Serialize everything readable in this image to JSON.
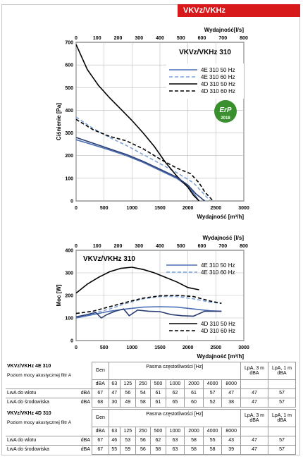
{
  "header_tag": "VKVz/VKHz",
  "chart_data": [
    {
      "type": "line",
      "title": "VKVz/VKHz 310",
      "top_axis_label": "Wydajność[l/s]",
      "top_ticks": [
        "0",
        "100",
        "200",
        "300",
        "400",
        "500",
        "600",
        "700",
        "800"
      ],
      "xlabel": "Wydajność [m³/h]",
      "ylabel": "Ciśnienie [Pa]",
      "xlim": [
        0,
        3000
      ],
      "ylim": [
        0,
        700
      ],
      "x_ticks": [
        0,
        500,
        1000,
        1500,
        2000,
        2500,
        3000
      ],
      "y_ticks": [
        0,
        100,
        200,
        300,
        400,
        500,
        600,
        700
      ],
      "legend_position": "top-right",
      "badge": "ErP 2018",
      "series": [
        {
          "name": "4E 310 50 Hz",
          "color": "#4a6fb5",
          "dash": "solid",
          "points": [
            [
              0,
              270
            ],
            [
              300,
              248
            ],
            [
              600,
              225
            ],
            [
              900,
              200
            ],
            [
              1200,
              170
            ],
            [
              1500,
              135
            ],
            [
              1800,
              100
            ],
            [
              2000,
              65
            ],
            [
              2100,
              35
            ],
            [
              2200,
              0
            ]
          ]
        },
        {
          "name": "4E 310 60 Hz",
          "color": "#7fa3d6",
          "dash": "dashed",
          "points": [
            [
              0,
              370
            ],
            [
              300,
              320
            ],
            [
              600,
              280
            ],
            [
              900,
              245
            ],
            [
              1200,
              205
            ],
            [
              1500,
              165
            ],
            [
              1800,
              125
            ],
            [
              2100,
              80
            ],
            [
              2250,
              40
            ],
            [
              2400,
              0
            ]
          ]
        },
        {
          "name": "4D 310 50 Hz",
          "color": "#000000",
          "dash": "solid",
          "points": [
            [
              0,
              690
            ],
            [
              200,
              580
            ],
            [
              400,
              510
            ],
            [
              600,
              455
            ],
            [
              800,
              405
            ],
            [
              1000,
              355
            ],
            [
              1200,
              300
            ],
            [
              1400,
              240
            ],
            [
              1600,
              170
            ],
            [
              1800,
              110
            ],
            [
              2000,
              60
            ],
            [
              2100,
              25
            ],
            [
              2200,
              0
            ]
          ]
        },
        {
          "name": "4D 310 60 Hz",
          "color": "#000000",
          "dash": "dashed",
          "points": [
            [
              0,
              360
            ],
            [
              300,
              315
            ],
            [
              600,
              285
            ],
            [
              900,
              265
            ],
            [
              1200,
              230
            ],
            [
              1500,
              185
            ],
            [
              1800,
              145
            ],
            [
              2050,
              120
            ],
            [
              2200,
              80
            ],
            [
              2300,
              40
            ],
            [
              2450,
              0
            ]
          ]
        },
        {
          "name": "",
          "color": "#2c3e73",
          "dash": "solid",
          "points": [
            [
              0,
              280
            ],
            [
              300,
              255
            ],
            [
              600,
              230
            ],
            [
              900,
              205
            ],
            [
              1200,
              175
            ],
            [
              1500,
              140
            ],
            [
              1800,
              105
            ],
            [
              2000,
              70
            ],
            [
              2150,
              30
            ],
            [
              2300,
              0
            ]
          ]
        }
      ]
    },
    {
      "type": "line",
      "title": "VKVz/VKHz 310",
      "top_axis_label": "Wydajność [l/s]",
      "top_ticks": [
        "0",
        "100",
        "200",
        "300",
        "400",
        "500",
        "600",
        "700",
        "800"
      ],
      "xlabel": "Wydajność [m³/h]",
      "ylabel": "Moc [W]",
      "xlim": [
        0,
        3000
      ],
      "ylim": [
        0,
        400
      ],
      "x_ticks": [
        0,
        500,
        1000,
        1500,
        2000,
        2500,
        3000
      ],
      "y_ticks": [
        0,
        100,
        200,
        300,
        400
      ],
      "series": [
        {
          "name": "4E 310 50 Hz",
          "color": "#4a6fb5",
          "dash": "solid",
          "points": [
            [
              0,
              100
            ],
            [
              300,
              115
            ],
            [
              600,
              130
            ],
            [
              900,
              140
            ],
            [
              1200,
              148
            ],
            [
              1500,
              150
            ],
            [
              1800,
              148
            ],
            [
              2100,
              140
            ],
            [
              2400,
              132
            ],
            [
              2600,
              130
            ]
          ]
        },
        {
          "name": "4E 310 60 Hz",
          "color": "#7fa3d6",
          "dash": "dashed",
          "points": [
            [
              0,
              105
            ],
            [
              300,
              120
            ],
            [
              600,
              140
            ],
            [
              900,
              165
            ],
            [
              1200,
              185
            ],
            [
              1500,
              195
            ],
            [
              1800,
              195
            ],
            [
              2100,
              185
            ],
            [
              2400,
              170
            ],
            [
              2600,
              165
            ]
          ]
        },
        {
          "name": "4D 310 50 Hz",
          "color": "#000000",
          "dash": "solid",
          "points": [
            [
              0,
              210
            ],
            [
              200,
              250
            ],
            [
              400,
              280
            ],
            [
              600,
              305
            ],
            [
              800,
              320
            ],
            [
              1000,
              325
            ],
            [
              1200,
              315
            ],
            [
              1400,
              300
            ],
            [
              1600,
              280
            ],
            [
              1800,
              260
            ],
            [
              2000,
              235
            ],
            [
              2200,
              225
            ]
          ]
        },
        {
          "name": "4D 310 60 Hz",
          "color": "#000000",
          "dash": "dashed",
          "points": [
            [
              0,
              120
            ],
            [
              300,
              130
            ],
            [
              600,
              150
            ],
            [
              900,
              170
            ],
            [
              1200,
              188
            ],
            [
              1500,
              198
            ],
            [
              1800,
              200
            ],
            [
              2100,
              195
            ],
            [
              2400,
              175
            ],
            [
              2600,
              165
            ]
          ]
        },
        {
          "name": "",
          "color": "#2c3e73",
          "dash": "solid",
          "points": [
            [
              0,
              105
            ],
            [
              200,
              115
            ],
            [
              350,
              125
            ],
            [
              450,
              100
            ],
            [
              550,
              115
            ],
            [
              700,
              130
            ],
            [
              850,
              140
            ],
            [
              950,
              110
            ],
            [
              1100,
              135
            ],
            [
              1300,
              130
            ],
            [
              1500,
              128
            ],
            [
              1700,
              115
            ],
            [
              1900,
              110
            ],
            [
              2100,
              108
            ],
            [
              2300,
              130
            ],
            [
              2600,
              130
            ]
          ]
        }
      ]
    }
  ],
  "tables": [
    {
      "title": "VKVz/VKHz 4E 310",
      "subtitle": "Poziom mocy akustycznej filtr A",
      "gen": "Gen",
      "band_label": "Pasma częstotliwości [Hz]",
      "lpa3": "LpA, 3 m dBA",
      "lpa1": "LpA, 1 m dBA",
      "unit_row": [
        "dBA",
        "63",
        "125",
        "250",
        "500",
        "1000",
        "2000",
        "4000",
        "8000"
      ],
      "rows": [
        {
          "label": "LwA do wlotu",
          "unit": "dBA",
          "gen": "67",
          "bands": [
            "47",
            "56",
            "54",
            "61",
            "62",
            "61",
            "57",
            "47"
          ],
          "lpa3": "47",
          "lpa1": "57"
        },
        {
          "label": "LwA do środowiska",
          "unit": "dBA",
          "gen": "68",
          "bands": [
            "30",
            "49",
            "58",
            "61",
            "65",
            "60",
            "52",
            "38"
          ],
          "lpa3": "47",
          "lpa1": "57"
        }
      ]
    },
    {
      "title": "VKVz/VKHz 4D 310",
      "subtitle": "Poziom mocy akustycznej filtr A",
      "gen": "Gen",
      "band_label": "Pasma częstotliwości [Hz]",
      "lpa3": "LpA, 3 m dBA",
      "lpa1": "LpA, 1 m dBA",
      "unit_row": [
        "dBA",
        "63",
        "125",
        "250",
        "500",
        "1000",
        "2000",
        "4000",
        "8000"
      ],
      "rows": [
        {
          "label": "LwA do wlotu",
          "unit": "dBA",
          "gen": "67",
          "bands": [
            "46",
            "53",
            "56",
            "62",
            "63",
            "58",
            "55",
            "43"
          ],
          "lpa3": "47",
          "lpa1": "57"
        },
        {
          "label": "LwA do środowiska",
          "unit": "dBA",
          "gen": "67",
          "bands": [
            "55",
            "59",
            "56",
            "58",
            "63",
            "58",
            "58",
            "39"
          ],
          "lpa3": "47",
          "lpa1": "57"
        }
      ]
    }
  ]
}
